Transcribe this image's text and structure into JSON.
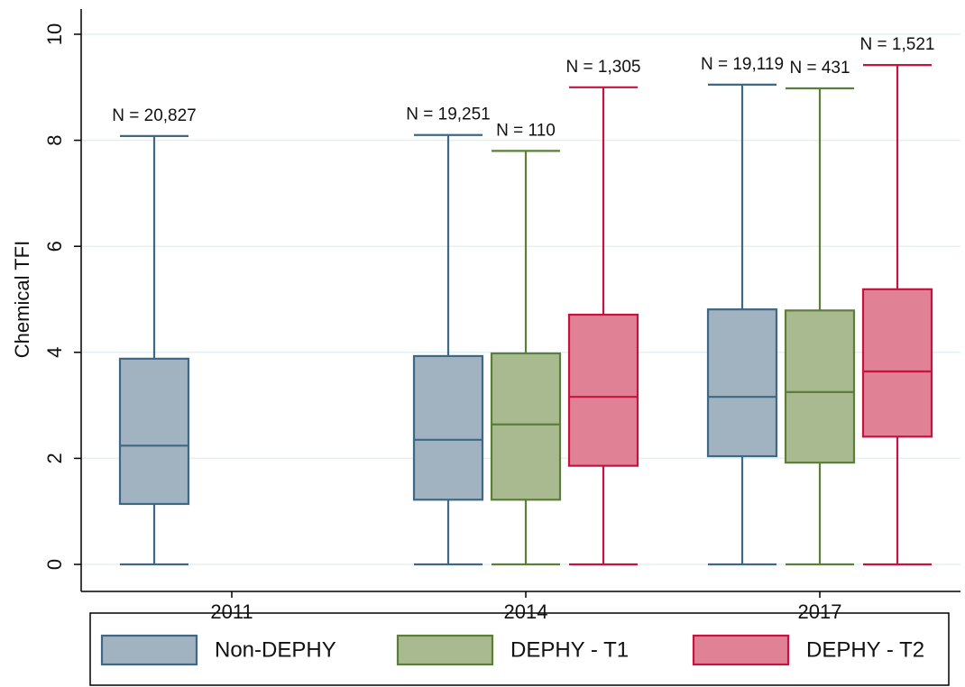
{
  "chart_data": {
    "type": "box",
    "y_label": "Chemical TFI",
    "categories": [
      "2011",
      "2014",
      "2017"
    ],
    "ylim": [
      0,
      10
    ],
    "yticks": [
      0,
      2,
      4,
      6,
      8,
      10
    ],
    "grid": true,
    "legend": "bottom",
    "series": [
      {
        "name": "Non-DEPHY",
        "color": "#3e6883",
        "fill": "#a1b2c1",
        "whisker_low": [
          0,
          0,
          0
        ],
        "q1": [
          1.14,
          1.22,
          2.04
        ],
        "median": [
          2.24,
          2.35,
          3.16
        ],
        "q3": [
          3.88,
          3.93,
          4.81
        ],
        "whisker_high": [
          8.08,
          8.1,
          9.05
        ],
        "n_labels": [
          "N = 20,827",
          "N = 19,251",
          "N = 19,119"
        ]
      },
      {
        "name": "DEPHY - T1",
        "color": "#5b7f36",
        "fill": "#a9ba90",
        "whisker_low": [
          null,
          0,
          0
        ],
        "q1": [
          null,
          1.22,
          1.92
        ],
        "median": [
          null,
          2.64,
          3.25
        ],
        "q3": [
          null,
          3.98,
          4.79
        ],
        "whisker_high": [
          null,
          7.8,
          8.98
        ],
        "n_labels": [
          null,
          "N = 110",
          "N = 431"
        ]
      },
      {
        "name": "DEPHY - T2",
        "color": "#c6143f",
        "fill": "#e08196",
        "whisker_low": [
          null,
          0,
          0
        ],
        "q1": [
          null,
          1.86,
          2.41
        ],
        "median": [
          null,
          3.16,
          3.64
        ],
        "q3": [
          null,
          4.71,
          5.19
        ],
        "whisker_high": [
          null,
          9.0,
          9.42
        ],
        "n_labels": [
          null,
          "N = 1,305",
          "N = 1,521"
        ]
      }
    ]
  }
}
